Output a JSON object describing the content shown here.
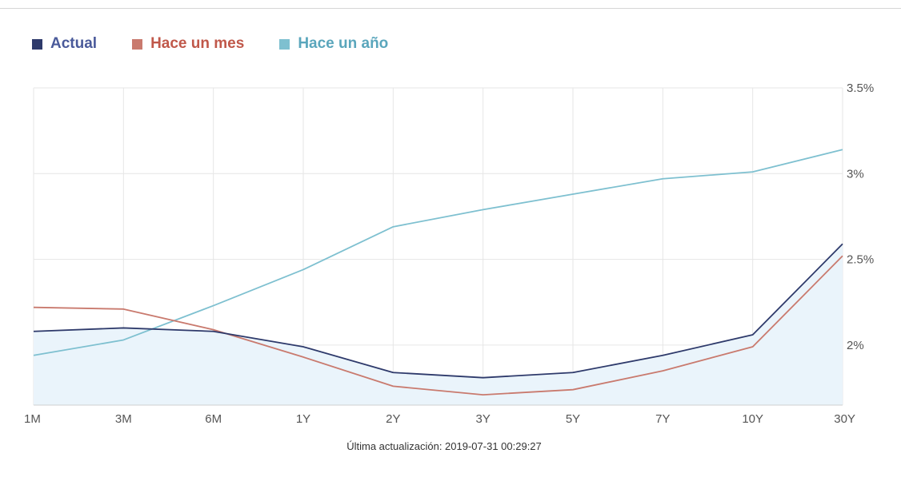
{
  "colors": {
    "actual": "#2e3a6b",
    "month": "#c97a6e",
    "year": "#7ec0d0",
    "legend_actual_text": "#4a5a9a",
    "legend_month_text": "#c0584a",
    "legend_year_text": "#5aa6bc",
    "grid": "#e6e6e6",
    "area": "#eaf4fb"
  },
  "chart_data": {
    "type": "line",
    "categories": [
      "1M",
      "3M",
      "6M",
      "1Y",
      "2Y",
      "3Y",
      "5Y",
      "7Y",
      "10Y",
      "30Y"
    ],
    "series": [
      {
        "name": "Actual",
        "values": [
          2.08,
          2.1,
          2.08,
          1.99,
          1.84,
          1.81,
          1.84,
          1.94,
          2.06,
          2.59
        ]
      },
      {
        "name": "Hace un mes",
        "values": [
          2.22,
          2.21,
          2.09,
          1.93,
          1.76,
          1.71,
          1.74,
          1.85,
          1.99,
          2.52
        ]
      },
      {
        "name": "Hace un año",
        "values": [
          1.94,
          2.03,
          2.23,
          2.44,
          2.69,
          2.79,
          2.88,
          2.97,
          3.01,
          3.14
        ]
      }
    ],
    "y_ticks": [
      "2%",
      "2.5%",
      "3%",
      "3.5%"
    ],
    "ylim": [
      1.65,
      3.5
    ],
    "grid": true,
    "legend_position": "top-left",
    "y_axis_position": "right",
    "area_fill_series": "Actual"
  },
  "footnote": "Última actualización: 2019-07-31 00:29:27"
}
